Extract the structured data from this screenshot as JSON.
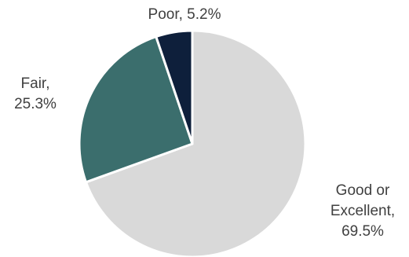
{
  "chart_data": {
    "type": "pie",
    "title": "",
    "slices": [
      {
        "label": "Good or Excellent",
        "value": 69.5,
        "value_label": "69.5%",
        "label_lines": [
          "Good or",
          "Excellent,",
          "69.5%"
        ],
        "color": "#d9d9d9"
      },
      {
        "label": "Fair",
        "value": 25.3,
        "value_label": "25.3%",
        "label_lines": [
          "Fair,",
          "25.3%"
        ],
        "color": "#3b6e6d"
      },
      {
        "label": "Poor",
        "value": 5.2,
        "value_label": "5.2%",
        "label_lines": [
          "Poor, 5.2%"
        ],
        "color": "#0e1f3b"
      }
    ],
    "start_angle": "12 o'clock",
    "direction": "clockwise",
    "legend": "none",
    "data_labels": "outside"
  }
}
